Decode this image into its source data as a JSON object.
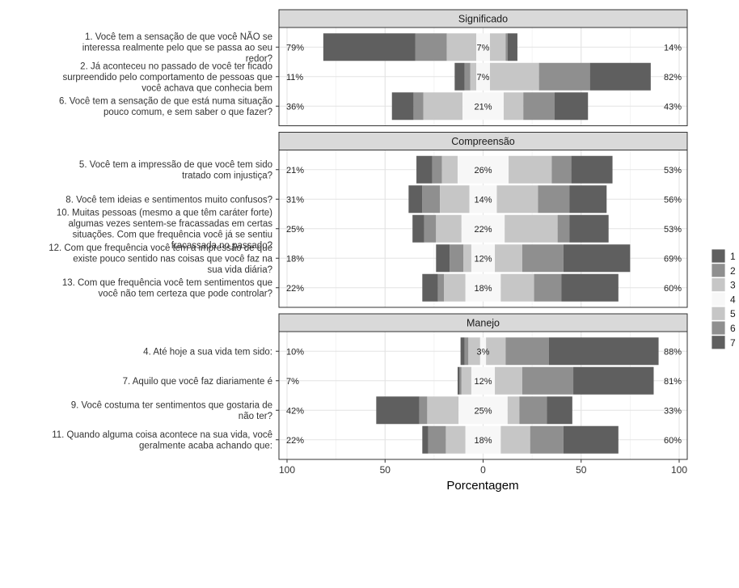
{
  "chart_data": {
    "type": "bar",
    "subtype": "diverging-stacked-likert",
    "xlabel": "Porcentagem",
    "xlim": [
      -100,
      100
    ],
    "xticks": [
      -100,
      -50,
      0,
      50,
      100
    ],
    "xtick_labels": [
      "100",
      "50",
      "0",
      "50",
      "100"
    ],
    "legend": {
      "position": "right",
      "levels": [
        "1",
        "2",
        "3",
        "4",
        "5",
        "6",
        "7"
      ]
    },
    "colors": [
      "#5f5f5f",
      "#8f8f8f",
      "#c6c6c6",
      "#f7f7f7",
      "#c6c6c6",
      "#8f8f8f",
      "#5f5f5f"
    ],
    "grid": true,
    "panels": [
      {
        "title": "Significado",
        "items": [
          {
            "label": "1. Você tem a sensação de que você NÃO se interessa realmente pelo que se passa ao seu redor?",
            "left_pct": "79%",
            "neutral_pct": "7%",
            "right_pct": "14%",
            "values": [
              47,
              16,
              15,
              7,
              8,
              1,
              5
            ]
          },
          {
            "label": "2. Já aconteceu no passado de você ter ficado surpreendido pelo comportamento de pessoas que você achava que conhecia bem",
            "left_pct": "11%",
            "neutral_pct": "7%",
            "right_pct": "82%",
            "values": [
              5,
              3,
              3,
              7,
              25,
              26,
              31
            ]
          },
          {
            "label": "6. Você tem a sensação de que está numa situação pouco comum, e sem saber o que fazer?",
            "left_pct": "36%",
            "neutral_pct": "21%",
            "right_pct": "43%",
            "values": [
              11,
              5,
              20,
              21,
              10,
              16,
              17
            ]
          }
        ]
      },
      {
        "title": "Compreensão",
        "items": [
          {
            "label": "5. Você tem a impressão de que você tem sido tratado com injustiça?",
            "left_pct": "21%",
            "neutral_pct": "26%",
            "right_pct": "53%",
            "values": [
              8,
              5,
              8,
              26,
              22,
              10,
              21
            ]
          },
          {
            "label": "8. Você tem ideias e sentimentos muito confusos?",
            "left_pct": "31%",
            "neutral_pct": "14%",
            "right_pct": "56%",
            "values": [
              7,
              9,
              15,
              14,
              21,
              16,
              19
            ]
          },
          {
            "label": "10. Muitas pessoas (mesmo a que têm caráter forte) algumas vezes sentem-se fracassadas em certas situações. Com que frequência você já se sentiu fracassada no passado?",
            "left_pct": "25%",
            "neutral_pct": "22%",
            "right_pct": "53%",
            "values": [
              6,
              6,
              13,
              22,
              27,
              6,
              20
            ]
          },
          {
            "label": "12. Com que frequência você tem a impressão de que existe pouco sentido nas coisas que você faz na sua vida diária?",
            "left_pct": "18%",
            "neutral_pct": "12%",
            "right_pct": "69%",
            "values": [
              7,
              7,
              4,
              12,
              14,
              21,
              34
            ]
          },
          {
            "label": "13. Com que frequência você tem sentimentos que você não tem certeza que pode controlar?",
            "left_pct": "22%",
            "neutral_pct": "18%",
            "right_pct": "60%",
            "values": [
              8,
              3,
              11,
              18,
              17,
              14,
              29
            ]
          }
        ]
      },
      {
        "title": "Manejo",
        "items": [
          {
            "label": "4. Até hoje a sua vida tem sido:",
            "left_pct": "10%",
            "neutral_pct": "3%",
            "right_pct": "88%",
            "values": [
              2,
              2,
              6,
              3,
              10,
              22,
              56
            ]
          },
          {
            "label": "7. Aquilo que você faz diariamente é",
            "left_pct": "7%",
            "neutral_pct": "12%",
            "right_pct": "81%",
            "values": [
              1,
              1,
              5,
              12,
              14,
              26,
              41
            ]
          },
          {
            "label": "9. Você costuma ter sentimentos que gostaria de não ter?",
            "left_pct": "42%",
            "neutral_pct": "25%",
            "right_pct": "33%",
            "values": [
              22,
              4,
              16,
              25,
              6,
              14,
              13
            ]
          },
          {
            "label": "11. Quando alguma coisa acontece na sua vida, você geralmente acaba achando que:",
            "left_pct": "22%",
            "neutral_pct": "18%",
            "right_pct": "60%",
            "values": [
              3,
              9,
              10,
              18,
              15,
              17,
              28
            ]
          }
        ]
      }
    ]
  }
}
